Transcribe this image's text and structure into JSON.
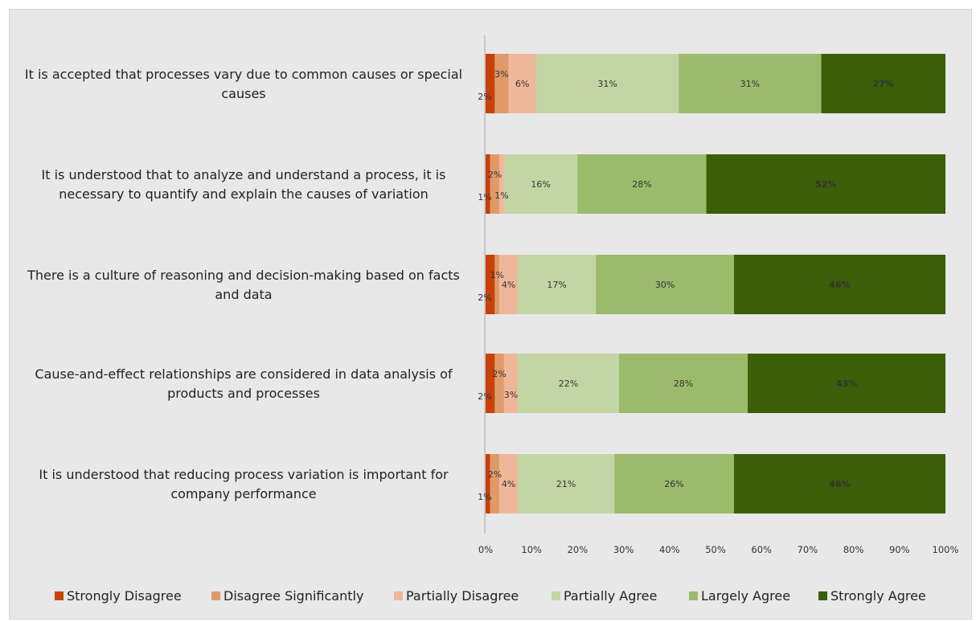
{
  "chart_data": {
    "type": "bar",
    "orientation": "horizontal",
    "stacked": true,
    "categories": [
      "It is accepted that processes vary due to common causes or special causes",
      "It is understood that to analyze and understand a process, it is necessary to quantify and explain the causes of variation",
      "There is a culture of reasoning and decision-making based on facts and data",
      "Cause-and-effect relationships are considered in data analysis of products and processes",
      "It is understood that reducing process variation is important for company performance"
    ],
    "category_lines": [
      [
        "It is accepted that processes vary due to common causes or special",
        "causes"
      ],
      [
        "It is understood that to analyze and understand a process, it is",
        "necessary to quantify and explain the causes of variation"
      ],
      [
        "There is a culture of reasoning and decision-making based on facts",
        "and data"
      ],
      [
        "Cause-and-effect relationships are considered in data analysis of",
        "products and processes"
      ],
      [
        "It is understood that reducing process variation is important for",
        "company performance"
      ]
    ],
    "series": [
      {
        "name": "Strongly Disagree",
        "color": "#c8410b",
        "values": [
          2,
          1,
          2,
          2,
          1
        ]
      },
      {
        "name": "Disagree Significantly",
        "color": "#e09a68",
        "values": [
          3,
          2,
          1,
          2,
          2
        ]
      },
      {
        "name": "Partially Disagree",
        "color": "#efb79a",
        "values": [
          6,
          1,
          4,
          3,
          4
        ]
      },
      {
        "name": "Partially Agree",
        "color": "#c3d5a4",
        "values": [
          31,
          16,
          17,
          22,
          21
        ]
      },
      {
        "name": "Largely Agree",
        "color": "#9cba6c",
        "values": [
          31,
          28,
          30,
          28,
          26
        ]
      },
      {
        "name": "Strongly Agree",
        "color": "#3b5e09",
        "values": [
          27,
          52,
          46,
          43,
          46
        ]
      }
    ],
    "data_labels": [
      [
        "2%",
        "3%",
        "6%",
        "31%",
        "31%",
        "27%"
      ],
      [
        "1%",
        "2%",
        "1%",
        "16%",
        "28%",
        "52%"
      ],
      [
        "2%",
        "1%",
        "4%",
        "17%",
        "30%",
        "46%"
      ],
      [
        "2%",
        "2%",
        "3%",
        "22%",
        "28%",
        "43%"
      ],
      [
        "1%",
        "2%",
        "4%",
        "21%",
        "26%",
        "46%"
      ]
    ],
    "xticks": [
      "0%",
      "10%",
      "20%",
      "30%",
      "40%",
      "50%",
      "60%",
      "70%",
      "80%",
      "90%",
      "100%"
    ],
    "xlim": [
      0,
      100
    ],
    "grid": false,
    "legend_position": "bottom",
    "title": "",
    "xlabel": "",
    "ylabel": ""
  }
}
